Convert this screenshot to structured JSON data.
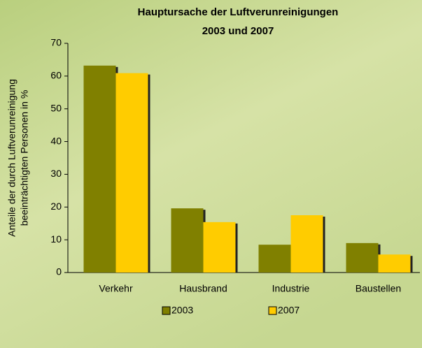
{
  "chart_data": {
    "type": "bar",
    "title": "Hauptursache der Luftverunreinigungen",
    "subtitle": "2003 und 2007",
    "ylabel": [
      "Anteile der durch Luftverunreinigung",
      "beeinträchtigten Personen in %"
    ],
    "categories": [
      "Verkehr",
      "Hausbrand",
      "Industrie",
      "Baustellen"
    ],
    "series": [
      {
        "name": "2003",
        "color": "#808000",
        "values": [
          63.2,
          19.6,
          8.5,
          9.0
        ]
      },
      {
        "name": "2007",
        "color": "#ffcc00",
        "values": [
          60.9,
          15.4,
          17.5,
          5.5
        ]
      }
    ],
    "ylim": [
      0,
      70
    ],
    "yticks": [
      0,
      10,
      20,
      30,
      40,
      50,
      60,
      70
    ],
    "grid": false
  }
}
